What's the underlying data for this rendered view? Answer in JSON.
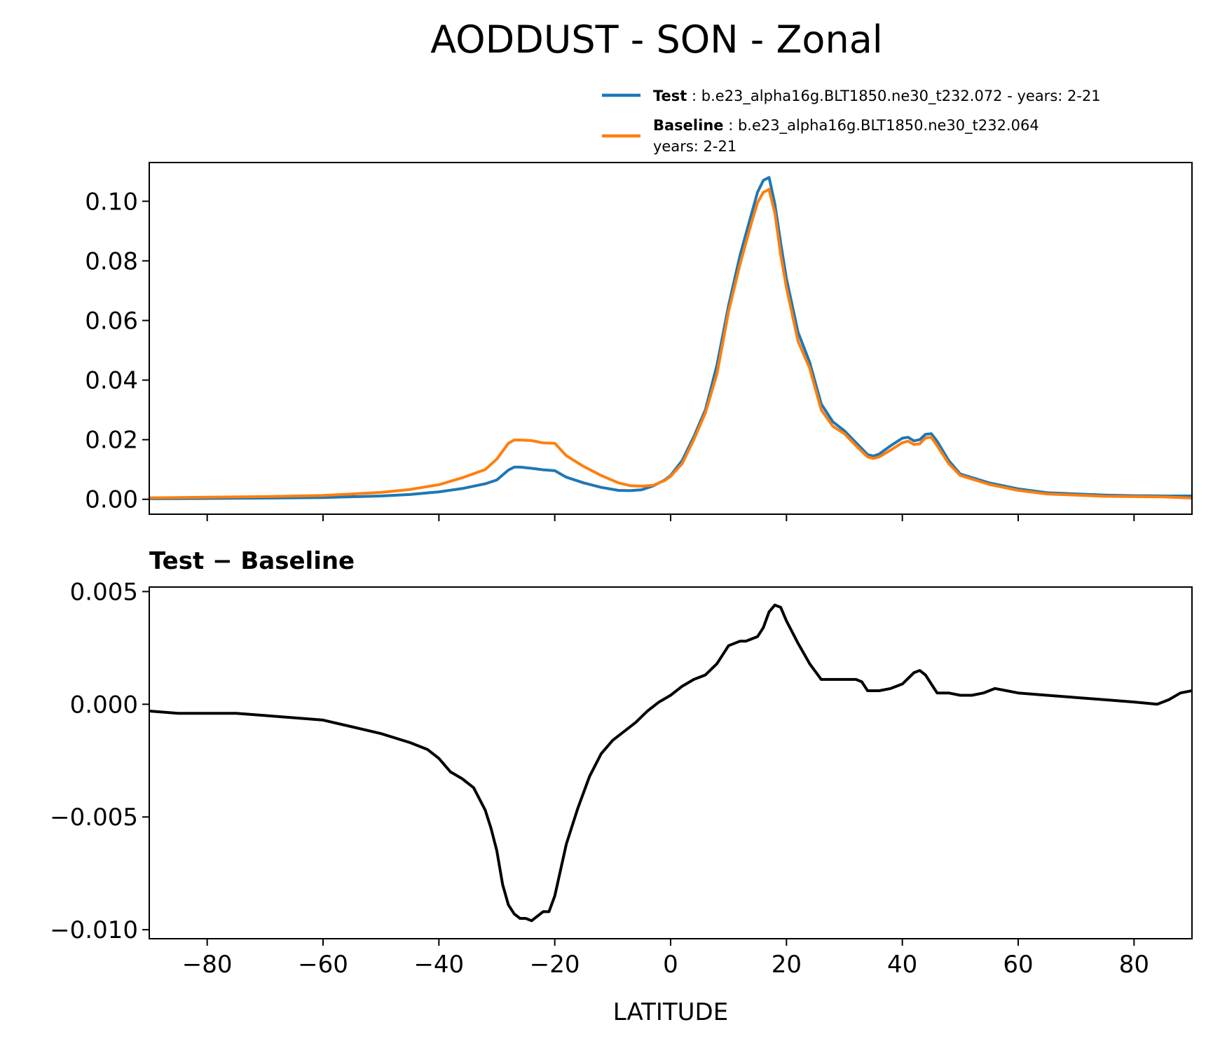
{
  "chart_data": [
    {
      "type": "line",
      "title": "AODDUST - SON - Zonal",
      "xlabel": "",
      "ylabel": "",
      "xlim": [
        -90,
        90
      ],
      "ylim": [
        -0.005,
        0.113
      ],
      "xticks": [
        -80,
        -60,
        -40,
        -20,
        0,
        20,
        40,
        60,
        80
      ],
      "yticks": [
        0.0,
        0.02,
        0.04,
        0.06,
        0.08,
        0.1
      ],
      "ytick_labels": [
        "0.00",
        "0.02",
        "0.04",
        "0.06",
        "0.08",
        "0.10"
      ],
      "legend": {
        "position": "top-right",
        "entries": [
          {
            "name": "Test",
            "separator": " : ",
            "text": "b.e23_alpha16g.BLT1850.ne30_t232.072 - years: 2-21",
            "text2": ""
          },
          {
            "name": "Baseline",
            "separator": " : ",
            "text": "b.e23_alpha16g.BLT1850.ne30_t232.064",
            "text2": "years: 2-21"
          }
        ]
      },
      "series": [
        {
          "name": "Test",
          "color": "#1f77b4",
          "x": [
            -90,
            -80,
            -70,
            -60,
            -50,
            -45,
            -40,
            -36,
            -32,
            -30,
            -28,
            -27,
            -26,
            -24,
            -22,
            -20,
            -18,
            -15,
            -12,
            -9,
            -7,
            -5,
            -3,
            -1,
            0,
            2,
            4,
            6,
            8,
            10,
            12,
            14,
            15,
            16,
            17,
            18,
            19,
            20,
            22,
            24,
            26,
            28,
            30,
            32,
            34,
            35,
            36,
            38,
            40,
            41,
            42,
            43,
            44,
            45,
            46,
            48,
            50,
            55,
            60,
            65,
            70,
            75,
            80,
            85,
            90
          ],
          "y": [
            0.0002,
            0.0003,
            0.0004,
            0.0006,
            0.0011,
            0.0016,
            0.0025,
            0.0036,
            0.0052,
            0.0065,
            0.0098,
            0.0108,
            0.0108,
            0.0104,
            0.0099,
            0.0096,
            0.0074,
            0.0055,
            0.004,
            0.003,
            0.0029,
            0.0032,
            0.0045,
            0.0065,
            0.008,
            0.013,
            0.021,
            0.03,
            0.045,
            0.065,
            0.082,
            0.096,
            0.103,
            0.107,
            0.108,
            0.099,
            0.086,
            0.074,
            0.056,
            0.046,
            0.032,
            0.026,
            0.023,
            0.019,
            0.015,
            0.0145,
            0.0152,
            0.018,
            0.0205,
            0.0208,
            0.0196,
            0.02,
            0.0218,
            0.022,
            0.0195,
            0.013,
            0.0085,
            0.0055,
            0.0035,
            0.0022,
            0.0018,
            0.0014,
            0.0012,
            0.0011,
            0.0011
          ]
        },
        {
          "name": "Baseline",
          "color": "#ff7f0e",
          "x": [
            -90,
            -80,
            -70,
            -60,
            -50,
            -45,
            -40,
            -36,
            -32,
            -30,
            -28,
            -27,
            -26,
            -24,
            -22,
            -20,
            -18,
            -15,
            -12,
            -9,
            -7,
            -5,
            -3,
            -1,
            0,
            2,
            4,
            6,
            8,
            10,
            12,
            14,
            15,
            16,
            17,
            18,
            19,
            20,
            22,
            24,
            26,
            28,
            30,
            32,
            34,
            35,
            36,
            38,
            40,
            41,
            42,
            43,
            44,
            45,
            46,
            48,
            50,
            55,
            60,
            65,
            70,
            75,
            80,
            85,
            90
          ],
          "y": [
            0.0005,
            0.0007,
            0.0009,
            0.0013,
            0.0023,
            0.0033,
            0.0049,
            0.0072,
            0.01,
            0.0135,
            0.0188,
            0.0199,
            0.0199,
            0.0197,
            0.0189,
            0.0188,
            0.0146,
            0.011,
            0.008,
            0.0055,
            0.0046,
            0.0044,
            0.0047,
            0.0063,
            0.0077,
            0.012,
            0.02,
            0.029,
            0.042,
            0.063,
            0.079,
            0.093,
            0.0995,
            0.103,
            0.104,
            0.096,
            0.082,
            0.071,
            0.053,
            0.044,
            0.03,
            0.0245,
            0.022,
            0.018,
            0.0142,
            0.0137,
            0.0142,
            0.0165,
            0.019,
            0.0195,
            0.0184,
            0.0186,
            0.0206,
            0.0208,
            0.018,
            0.012,
            0.008,
            0.005,
            0.003,
            0.0018,
            0.0014,
            0.001,
            0.0009,
            0.0008,
            0.0004
          ]
        }
      ]
    },
    {
      "type": "line",
      "title": "Test − Baseline",
      "xlabel": "LATITUDE",
      "ylabel": "",
      "xlim": [
        -90,
        90
      ],
      "ylim": [
        -0.0104,
        0.0052
      ],
      "xticks": [
        -80,
        -60,
        -40,
        -20,
        0,
        20,
        40,
        60,
        80
      ],
      "xtick_labels": [
        "−80",
        "−60",
        "−40",
        "−20",
        "0",
        "20",
        "40",
        "60",
        "80"
      ],
      "yticks": [
        -0.01,
        -0.005,
        0.0,
        0.005
      ],
      "ytick_labels": [
        "−0.010",
        "−0.005",
        "0.000",
        "0.005"
      ],
      "series": [
        {
          "name": "Test - Baseline",
          "color": "#000000",
          "x": [
            -90,
            -85,
            -80,
            -75,
            -70,
            -65,
            -60,
            -55,
            -50,
            -45,
            -42,
            -40,
            -38,
            -36,
            -34,
            -32,
            -31,
            -30,
            -29,
            -28,
            -27,
            -26,
            -25,
            -24,
            -23,
            -22,
            -21,
            -20,
            -18,
            -16,
            -14,
            -12,
            -10,
            -8,
            -6,
            -4,
            -2,
            0,
            2,
            4,
            6,
            8,
            10,
            12,
            13,
            14,
            15,
            16,
            17,
            18,
            19,
            20,
            22,
            24,
            26,
            28,
            30,
            32,
            33,
            34,
            36,
            38,
            40,
            42,
            43,
            44,
            46,
            48,
            50,
            52,
            54,
            56,
            58,
            60,
            65,
            70,
            75,
            80,
            84,
            86,
            88,
            90
          ],
          "y": [
            -0.0003,
            -0.0004,
            -0.0004,
            -0.0004,
            -0.0005,
            -0.0006,
            -0.0007,
            -0.001,
            -0.0013,
            -0.0017,
            -0.002,
            -0.0024,
            -0.003,
            -0.0033,
            -0.0037,
            -0.0047,
            -0.0055,
            -0.0065,
            -0.008,
            -0.0089,
            -0.0093,
            -0.0095,
            -0.0095,
            -0.0096,
            -0.0094,
            -0.0092,
            -0.0092,
            -0.0085,
            -0.0062,
            -0.0046,
            -0.0032,
            -0.0022,
            -0.0016,
            -0.0012,
            -0.0008,
            -0.0003,
            0.0001,
            0.0004,
            0.0008,
            0.0011,
            0.0013,
            0.0018,
            0.0026,
            0.0028,
            0.0028,
            0.0029,
            0.003,
            0.0034,
            0.0041,
            0.0044,
            0.0043,
            0.0037,
            0.0027,
            0.0018,
            0.0011,
            0.0011,
            0.0011,
            0.0011,
            0.001,
            0.0006,
            0.0006,
            0.0007,
            0.0009,
            0.0014,
            0.0015,
            0.0013,
            0.0005,
            0.0005,
            0.0004,
            0.0004,
            0.0005,
            0.0007,
            0.0006,
            0.0005,
            0.0004,
            0.0003,
            0.0002,
            0.0001,
            0.0,
            0.0002,
            0.0005,
            0.0006
          ]
        }
      ]
    }
  ]
}
